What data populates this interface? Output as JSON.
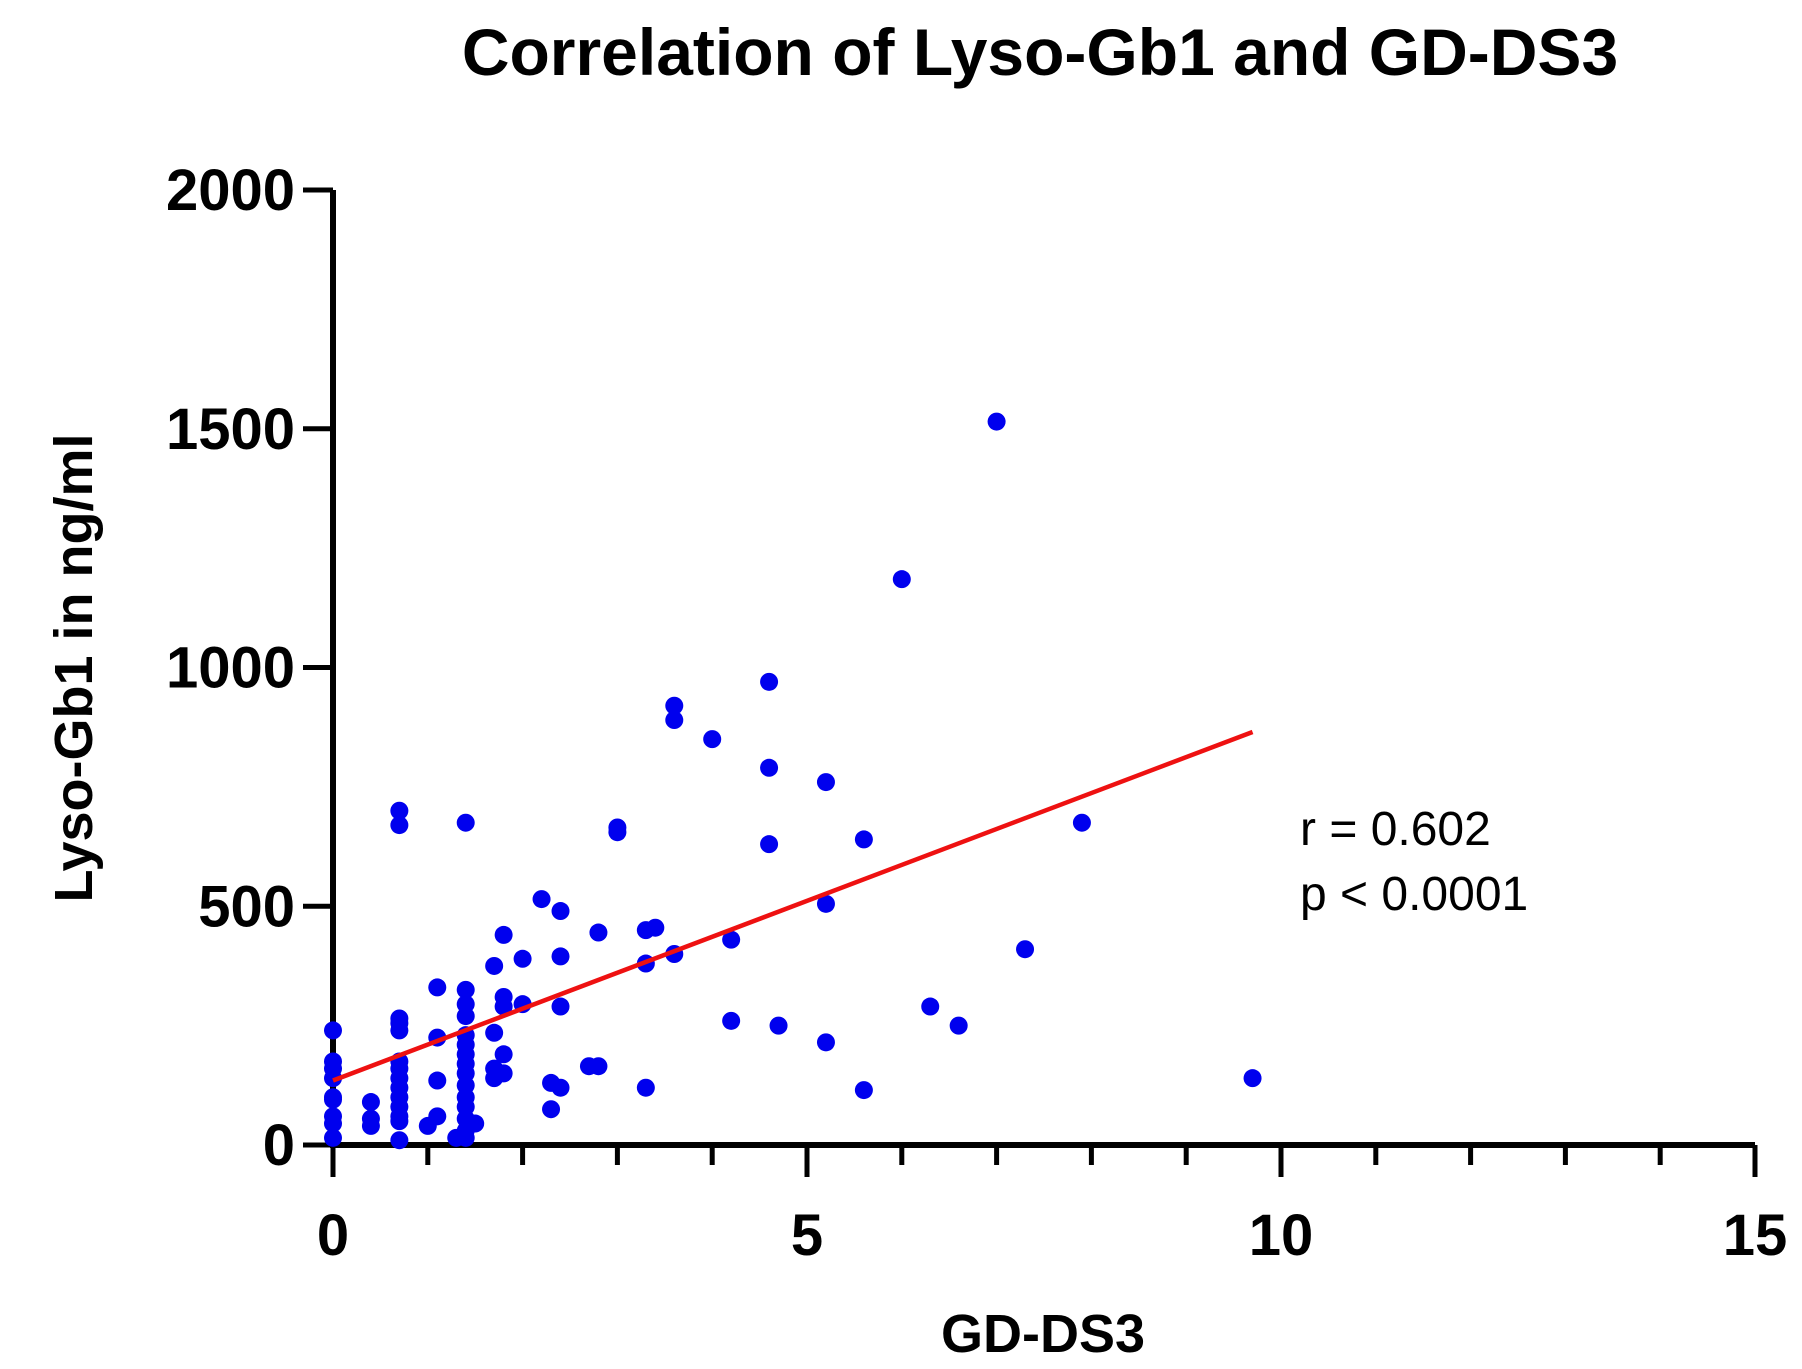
{
  "chart_data": {
    "type": "scatter",
    "title": "Correlation of Lyso-Gb1 and GD-DS3",
    "xlabel": "GD-DS3",
    "ylabel": "Lyso-Gb1 in ng/ml",
    "xlim": [
      0,
      15
    ],
    "ylim": [
      0,
      2000
    ],
    "x_ticks": [
      0,
      5,
      10,
      15
    ],
    "y_ticks": [
      0,
      500,
      1000,
      1500,
      2000
    ],
    "x_minor_step": 1,
    "point_color": "#0000ee",
    "line_color": "#ee1111",
    "annotations": {
      "r": "r = 0.602",
      "p": "p < 0.0001"
    },
    "regression": {
      "x": [
        0,
        9.7
      ],
      "y": [
        135,
        865
      ]
    },
    "series": [
      {
        "name": "patients",
        "points": [
          [
            0,
            240
          ],
          [
            0,
            175
          ],
          [
            0,
            160
          ],
          [
            0,
            140
          ],
          [
            0,
            100
          ],
          [
            0,
            95
          ],
          [
            0,
            60
          ],
          [
            0,
            45
          ],
          [
            0,
            15
          ],
          [
            0.4,
            90
          ],
          [
            0.4,
            55
          ],
          [
            0.4,
            40
          ],
          [
            0.7,
            700
          ],
          [
            0.7,
            670
          ],
          [
            0.7,
            265
          ],
          [
            0.7,
            255
          ],
          [
            0.7,
            240
          ],
          [
            0.7,
            175
          ],
          [
            0.7,
            160
          ],
          [
            0.7,
            140
          ],
          [
            0.7,
            120
          ],
          [
            0.7,
            100
          ],
          [
            0.7,
            80
          ],
          [
            0.7,
            60
          ],
          [
            0.7,
            50
          ],
          [
            0.7,
            10
          ],
          [
            1.0,
            40
          ],
          [
            1.1,
            330
          ],
          [
            1.1,
            225
          ],
          [
            1.1,
            135
          ],
          [
            1.1,
            60
          ],
          [
            1.3,
            15
          ],
          [
            1.4,
            675
          ],
          [
            1.4,
            325
          ],
          [
            1.4,
            295
          ],
          [
            1.4,
            270
          ],
          [
            1.4,
            230
          ],
          [
            1.4,
            210
          ],
          [
            1.4,
            190
          ],
          [
            1.4,
            170
          ],
          [
            1.4,
            150
          ],
          [
            1.4,
            125
          ],
          [
            1.4,
            100
          ],
          [
            1.4,
            80
          ],
          [
            1.4,
            55
          ],
          [
            1.4,
            30
          ],
          [
            1.4,
            15
          ],
          [
            1.5,
            45
          ],
          [
            1.7,
            375
          ],
          [
            1.7,
            235
          ],
          [
            1.7,
            160
          ],
          [
            1.7,
            140
          ],
          [
            1.8,
            440
          ],
          [
            1.8,
            310
          ],
          [
            1.8,
            290
          ],
          [
            1.8,
            190
          ],
          [
            1.8,
            150
          ],
          [
            2.0,
            390
          ],
          [
            2.0,
            295
          ],
          [
            2.2,
            515
          ],
          [
            2.3,
            130
          ],
          [
            2.3,
            75
          ],
          [
            2.4,
            490
          ],
          [
            2.4,
            395
          ],
          [
            2.4,
            290
          ],
          [
            2.4,
            120
          ],
          [
            2.7,
            165
          ],
          [
            2.8,
            445
          ],
          [
            2.8,
            165
          ],
          [
            3.0,
            665
          ],
          [
            3.0,
            655
          ],
          [
            3.3,
            450
          ],
          [
            3.3,
            380
          ],
          [
            3.3,
            120
          ],
          [
            3.4,
            455
          ],
          [
            3.6,
            920
          ],
          [
            3.6,
            890
          ],
          [
            3.6,
            400
          ],
          [
            4.0,
            850
          ],
          [
            4.2,
            430
          ],
          [
            4.2,
            260
          ],
          [
            4.6,
            970
          ],
          [
            4.6,
            790
          ],
          [
            4.6,
            630
          ],
          [
            4.7,
            250
          ],
          [
            5.2,
            760
          ],
          [
            5.2,
            505
          ],
          [
            5.2,
            215
          ],
          [
            5.6,
            640
          ],
          [
            5.6,
            115
          ],
          [
            6.0,
            1185
          ],
          [
            6.3,
            290
          ],
          [
            6.6,
            250
          ],
          [
            7.0,
            1515
          ],
          [
            7.3,
            410
          ],
          [
            7.9,
            675
          ],
          [
            9.7,
            140
          ]
        ]
      }
    ]
  }
}
